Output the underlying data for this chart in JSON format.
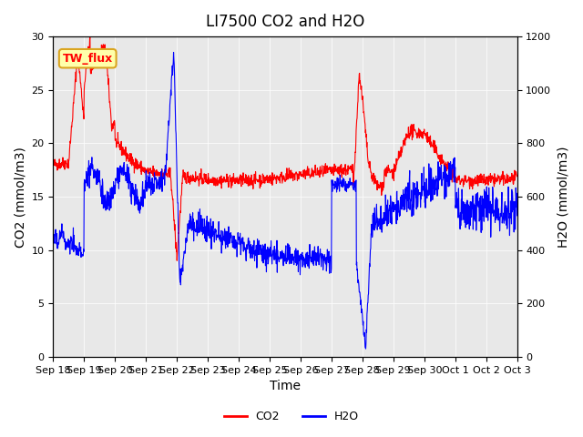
{
  "title": "LI7500 CO2 and H2O",
  "xlabel": "Time",
  "ylabel_left": "CO2 (mmol/m3)",
  "ylabel_right": "H2O (mmol/m3)",
  "ylim_left": [
    0,
    30
  ],
  "ylim_right": [
    0,
    1200
  ],
  "yticks_left": [
    0,
    5,
    10,
    15,
    20,
    25,
    30
  ],
  "yticks_right": [
    0,
    200,
    400,
    600,
    800,
    1000,
    1200
  ],
  "xtick_labels": [
    "Sep 18",
    "Sep 19",
    "Sep 20",
    "Sep 21",
    "Sep 22",
    "Sep 23",
    "Sep 24",
    "Sep 25",
    "Sep 26",
    "Sep 27",
    "Sep 28",
    "Sep 29",
    "Sep 30",
    "Oct 1",
    "Oct 2",
    "Oct 3"
  ],
  "plot_bg_color": "#e8e8e8",
  "legend_labels": [
    "CO2",
    "H2O"
  ],
  "annotation_text": "TW_flux",
  "annotation_bg": "#ffffaa",
  "title_fontsize": 12,
  "axis_fontsize": 10,
  "tick_fontsize": 8
}
